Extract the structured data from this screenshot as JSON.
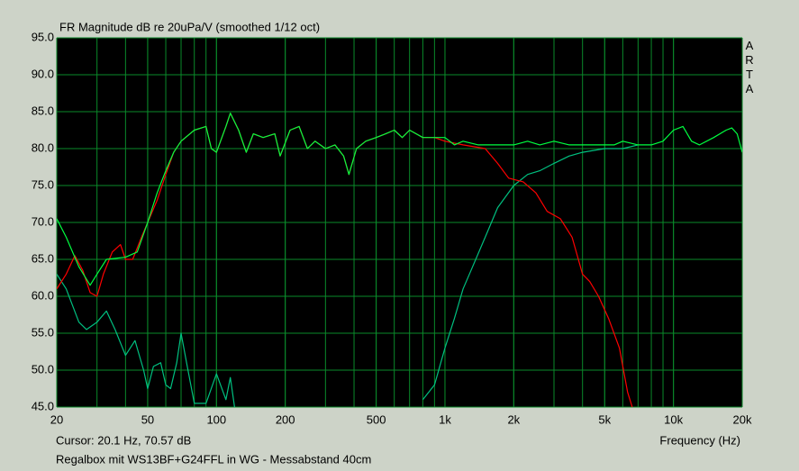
{
  "chart_data": {
    "type": "line",
    "title": "FR Magnitude dB re 20uPa/V (smoothed 1/12 oct)",
    "side_label": "ARTA",
    "cursor": "Cursor: 20.1 Hz, 70.57 dB",
    "x_label": "Frequency (Hz)",
    "caption": "Regalbox mit WS13BF+G24FFL in WG - Messabstand 40cm",
    "log_x": true,
    "grid": true,
    "xlim": [
      20,
      20000
    ],
    "ylim": [
      45,
      95
    ],
    "xticks": [
      20,
      50,
      100,
      200,
      500,
      {
        "value": 1000,
        "label": "1k"
      },
      {
        "value": 2000,
        "label": "2k"
      },
      {
        "value": 5000,
        "label": "5k"
      },
      {
        "value": 10000,
        "label": "10k"
      },
      {
        "value": 20000,
        "label": "20k"
      }
    ],
    "yticks": [
      {
        "value": 45,
        "label": "45.0"
      },
      {
        "value": 50,
        "label": "50.0"
      },
      {
        "value": 55,
        "label": "55.0"
      },
      {
        "value": 60,
        "label": "60.0"
      },
      {
        "value": 65,
        "label": "65.0"
      },
      {
        "value": 70,
        "label": "70.0"
      },
      {
        "value": 75,
        "label": "75.0"
      },
      {
        "value": 80,
        "label": "80.0"
      },
      {
        "value": 85,
        "label": "85.0"
      },
      {
        "value": 90,
        "label": "90.0"
      },
      {
        "value": 95,
        "label": "95.0"
      }
    ],
    "series": [
      {
        "color": "#00c080",
        "x": [
          20,
          22,
          25,
          27,
          30,
          33,
          36,
          40,
          44,
          48,
          50,
          53,
          57,
          60,
          63,
          67,
          70,
          74,
          80,
          90,
          100,
          110,
          115,
          120,
          700,
          800,
          900,
          1000,
          1100,
          1200,
          1300,
          1500,
          1700,
          2000,
          2300,
          2600,
          3000,
          3500,
          4000,
          5000,
          6000,
          7000
        ],
        "values": [
          63,
          61,
          56.5,
          55.5,
          56.5,
          58,
          55.5,
          52,
          54,
          50,
          47.5,
          50.5,
          51,
          48,
          47.5,
          51,
          55,
          51,
          45.5,
          45.5,
          49.5,
          46,
          49,
          45,
          null,
          46,
          48,
          53,
          57,
          61,
          63.5,
          68,
          72,
          75,
          76.5,
          77,
          78,
          79,
          79.5,
          80,
          80,
          80.5
        ]
      },
      {
        "color": "#ff0000",
        "x": [
          20,
          22,
          24,
          26,
          28,
          30,
          32,
          35,
          38,
          40,
          43,
          47,
          50,
          55,
          60,
          65,
          70,
          80,
          90,
          95,
          100,
          110,
          115,
          125,
          135,
          145,
          160,
          180,
          190,
          210,
          230,
          250,
          270,
          300,
          330,
          360,
          380,
          410,
          450,
          500,
          550,
          600,
          650,
          700,
          800,
          900,
          1000,
          1200,
          1500,
          1700,
          1900,
          2200,
          2500,
          2800,
          3200,
          3600,
          4000,
          4300,
          4700,
          5200,
          5800,
          6300,
          6600
        ],
        "values": [
          61,
          63,
          65.5,
          63.5,
          60.5,
          60,
          63,
          66,
          67,
          65,
          65,
          68,
          70,
          73,
          76.5,
          79.5,
          81,
          82.5,
          83,
          80,
          79.5,
          83,
          84.8,
          82.5,
          79.5,
          82,
          81.5,
          82,
          79,
          82.5,
          83,
          80,
          81,
          80,
          80.5,
          79,
          76.5,
          80,
          81,
          81.5,
          82,
          82.5,
          81.5,
          82.5,
          81.5,
          81.5,
          81,
          80.5,
          80,
          78,
          76,
          75.5,
          74,
          71.5,
          70.5,
          68,
          63,
          62,
          60,
          57,
          53,
          47,
          45
        ]
      },
      {
        "color": "#00ff40",
        "x": [
          20,
          22,
          25,
          28,
          30,
          33,
          40,
          45,
          50,
          55,
          60,
          65,
          70,
          80,
          90,
          95,
          100,
          110,
          115,
          125,
          135,
          145,
          160,
          180,
          190,
          210,
          230,
          250,
          270,
          300,
          330,
          360,
          380,
          410,
          450,
          500,
          550,
          600,
          650,
          700,
          800,
          900,
          1000,
          1100,
          1200,
          1400,
          1600,
          1800,
          2000,
          2300,
          2600,
          3000,
          3500,
          4000,
          4500,
          5000,
          5500,
          6000,
          7000,
          8000,
          9000,
          10000,
          11000,
          12000,
          13000,
          15000,
          17000,
          18000,
          19000,
          20000
        ],
        "values": [
          70.5,
          68,
          64,
          61.5,
          63,
          65,
          65.3,
          66,
          70,
          74,
          77,
          79.5,
          81,
          82.5,
          83,
          80,
          79.5,
          83,
          84.8,
          82.5,
          79.5,
          82,
          81.5,
          82,
          79,
          82.5,
          83,
          80,
          81,
          80,
          80.5,
          79,
          76.5,
          80,
          81,
          81.5,
          82,
          82.5,
          81.5,
          82.5,
          81.5,
          81.5,
          81.5,
          80.5,
          81,
          80.5,
          80.5,
          80.5,
          80.5,
          81,
          80.5,
          81,
          80.5,
          80.5,
          80.5,
          80.5,
          80.5,
          81,
          80.5,
          80.5,
          81,
          82.5,
          83,
          81,
          80.5,
          81.5,
          82.5,
          82.8,
          82,
          79.5
        ]
      }
    ]
  }
}
